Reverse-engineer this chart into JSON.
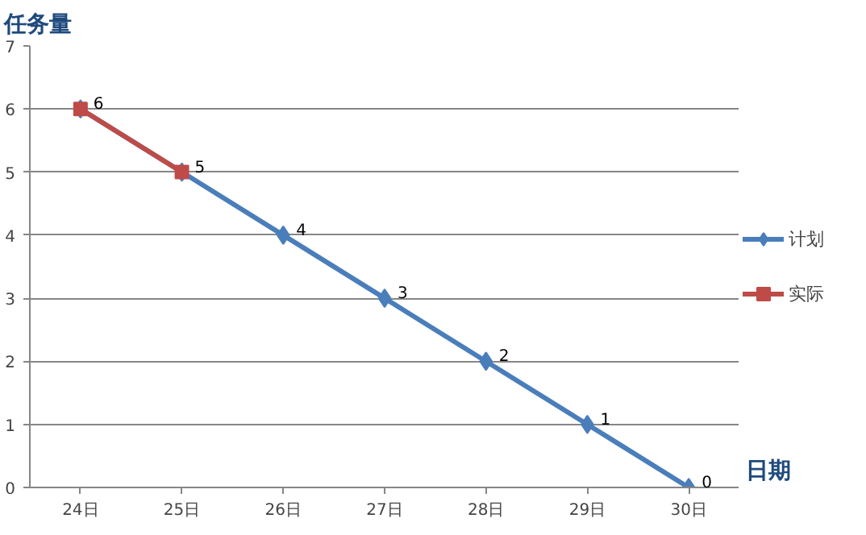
{
  "chart_data": {
    "type": "line",
    "xlabel": "日期",
    "ylabel": "任务量",
    "categories": [
      "24日",
      "25日",
      "26日",
      "27日",
      "28日",
      "29日",
      "30日"
    ],
    "series": [
      {
        "name": "计划",
        "color": "#4a7ebb",
        "marker": "diamond",
        "values": [
          6,
          5,
          4,
          3,
          2,
          1,
          0
        ],
        "value_labels": [
          "6",
          "5",
          "4",
          "3",
          "2",
          "1",
          "0"
        ]
      },
      {
        "name": "实际",
        "color": "#be4b48",
        "marker": "square",
        "values": [
          6,
          5,
          null,
          null,
          null,
          null,
          null
        ]
      }
    ],
    "ylim": [
      0,
      7
    ],
    "yticks": [
      0,
      1,
      2,
      3,
      4,
      5,
      6,
      7
    ],
    "grid": "y",
    "legend": "right",
    "line_style": "solid"
  }
}
